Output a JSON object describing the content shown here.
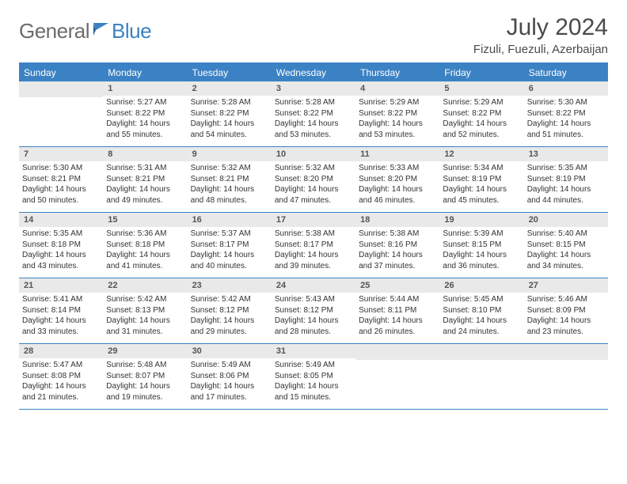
{
  "logo": {
    "general": "General",
    "blue": "Blue"
  },
  "title": "July 2024",
  "location": "Fizuli, Fuezuli, Azerbaijan",
  "colors": {
    "accent": "#3b82c4",
    "header_bg": "#3b82c4",
    "header_text": "#ffffff",
    "daynum_bg": "#e9e9e9",
    "daynum_text": "#555555",
    "body_text": "#333333",
    "logo_gray": "#6b6b6b",
    "logo_blue": "#3b82c4"
  },
  "weekdays": [
    "Sunday",
    "Monday",
    "Tuesday",
    "Wednesday",
    "Thursday",
    "Friday",
    "Saturday"
  ],
  "weeks": [
    [
      {
        "n": "",
        "lines": []
      },
      {
        "n": "1",
        "lines": [
          "Sunrise: 5:27 AM",
          "Sunset: 8:22 PM",
          "Daylight: 14 hours",
          "and 55 minutes."
        ]
      },
      {
        "n": "2",
        "lines": [
          "Sunrise: 5:28 AM",
          "Sunset: 8:22 PM",
          "Daylight: 14 hours",
          "and 54 minutes."
        ]
      },
      {
        "n": "3",
        "lines": [
          "Sunrise: 5:28 AM",
          "Sunset: 8:22 PM",
          "Daylight: 14 hours",
          "and 53 minutes."
        ]
      },
      {
        "n": "4",
        "lines": [
          "Sunrise: 5:29 AM",
          "Sunset: 8:22 PM",
          "Daylight: 14 hours",
          "and 53 minutes."
        ]
      },
      {
        "n": "5",
        "lines": [
          "Sunrise: 5:29 AM",
          "Sunset: 8:22 PM",
          "Daylight: 14 hours",
          "and 52 minutes."
        ]
      },
      {
        "n": "6",
        "lines": [
          "Sunrise: 5:30 AM",
          "Sunset: 8:22 PM",
          "Daylight: 14 hours",
          "and 51 minutes."
        ]
      }
    ],
    [
      {
        "n": "7",
        "lines": [
          "Sunrise: 5:30 AM",
          "Sunset: 8:21 PM",
          "Daylight: 14 hours",
          "and 50 minutes."
        ]
      },
      {
        "n": "8",
        "lines": [
          "Sunrise: 5:31 AM",
          "Sunset: 8:21 PM",
          "Daylight: 14 hours",
          "and 49 minutes."
        ]
      },
      {
        "n": "9",
        "lines": [
          "Sunrise: 5:32 AM",
          "Sunset: 8:21 PM",
          "Daylight: 14 hours",
          "and 48 minutes."
        ]
      },
      {
        "n": "10",
        "lines": [
          "Sunrise: 5:32 AM",
          "Sunset: 8:20 PM",
          "Daylight: 14 hours",
          "and 47 minutes."
        ]
      },
      {
        "n": "11",
        "lines": [
          "Sunrise: 5:33 AM",
          "Sunset: 8:20 PM",
          "Daylight: 14 hours",
          "and 46 minutes."
        ]
      },
      {
        "n": "12",
        "lines": [
          "Sunrise: 5:34 AM",
          "Sunset: 8:19 PM",
          "Daylight: 14 hours",
          "and 45 minutes."
        ]
      },
      {
        "n": "13",
        "lines": [
          "Sunrise: 5:35 AM",
          "Sunset: 8:19 PM",
          "Daylight: 14 hours",
          "and 44 minutes."
        ]
      }
    ],
    [
      {
        "n": "14",
        "lines": [
          "Sunrise: 5:35 AM",
          "Sunset: 8:18 PM",
          "Daylight: 14 hours",
          "and 43 minutes."
        ]
      },
      {
        "n": "15",
        "lines": [
          "Sunrise: 5:36 AM",
          "Sunset: 8:18 PM",
          "Daylight: 14 hours",
          "and 41 minutes."
        ]
      },
      {
        "n": "16",
        "lines": [
          "Sunrise: 5:37 AM",
          "Sunset: 8:17 PM",
          "Daylight: 14 hours",
          "and 40 minutes."
        ]
      },
      {
        "n": "17",
        "lines": [
          "Sunrise: 5:38 AM",
          "Sunset: 8:17 PM",
          "Daylight: 14 hours",
          "and 39 minutes."
        ]
      },
      {
        "n": "18",
        "lines": [
          "Sunrise: 5:38 AM",
          "Sunset: 8:16 PM",
          "Daylight: 14 hours",
          "and 37 minutes."
        ]
      },
      {
        "n": "19",
        "lines": [
          "Sunrise: 5:39 AM",
          "Sunset: 8:15 PM",
          "Daylight: 14 hours",
          "and 36 minutes."
        ]
      },
      {
        "n": "20",
        "lines": [
          "Sunrise: 5:40 AM",
          "Sunset: 8:15 PM",
          "Daylight: 14 hours",
          "and 34 minutes."
        ]
      }
    ],
    [
      {
        "n": "21",
        "lines": [
          "Sunrise: 5:41 AM",
          "Sunset: 8:14 PM",
          "Daylight: 14 hours",
          "and 33 minutes."
        ]
      },
      {
        "n": "22",
        "lines": [
          "Sunrise: 5:42 AM",
          "Sunset: 8:13 PM",
          "Daylight: 14 hours",
          "and 31 minutes."
        ]
      },
      {
        "n": "23",
        "lines": [
          "Sunrise: 5:42 AM",
          "Sunset: 8:12 PM",
          "Daylight: 14 hours",
          "and 29 minutes."
        ]
      },
      {
        "n": "24",
        "lines": [
          "Sunrise: 5:43 AM",
          "Sunset: 8:12 PM",
          "Daylight: 14 hours",
          "and 28 minutes."
        ]
      },
      {
        "n": "25",
        "lines": [
          "Sunrise: 5:44 AM",
          "Sunset: 8:11 PM",
          "Daylight: 14 hours",
          "and 26 minutes."
        ]
      },
      {
        "n": "26",
        "lines": [
          "Sunrise: 5:45 AM",
          "Sunset: 8:10 PM",
          "Daylight: 14 hours",
          "and 24 minutes."
        ]
      },
      {
        "n": "27",
        "lines": [
          "Sunrise: 5:46 AM",
          "Sunset: 8:09 PM",
          "Daylight: 14 hours",
          "and 23 minutes."
        ]
      }
    ],
    [
      {
        "n": "28",
        "lines": [
          "Sunrise: 5:47 AM",
          "Sunset: 8:08 PM",
          "Daylight: 14 hours",
          "and 21 minutes."
        ]
      },
      {
        "n": "29",
        "lines": [
          "Sunrise: 5:48 AM",
          "Sunset: 8:07 PM",
          "Daylight: 14 hours",
          "and 19 minutes."
        ]
      },
      {
        "n": "30",
        "lines": [
          "Sunrise: 5:49 AM",
          "Sunset: 8:06 PM",
          "Daylight: 14 hours",
          "and 17 minutes."
        ]
      },
      {
        "n": "31",
        "lines": [
          "Sunrise: 5:49 AM",
          "Sunset: 8:05 PM",
          "Daylight: 14 hours",
          "and 15 minutes."
        ]
      },
      {
        "n": "",
        "lines": []
      },
      {
        "n": "",
        "lines": []
      },
      {
        "n": "",
        "lines": []
      }
    ]
  ]
}
